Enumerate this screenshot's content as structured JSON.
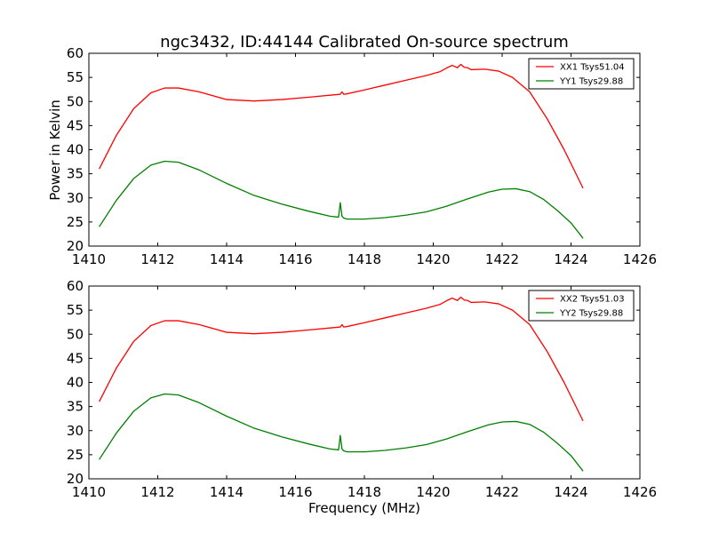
{
  "figure": {
    "title": "ngc3432, ID:44144 Calibrated On-source spectrum",
    "xlabel": "Frequency (MHz)",
    "ylabel": "Power in Kelvin"
  },
  "chart_data": [
    {
      "type": "line",
      "title": "ngc3432, ID:44144 Calibrated On-source spectrum",
      "xlabel": "",
      "ylabel": "Power in Kelvin",
      "xlim": [
        1410,
        1426
      ],
      "ylim": [
        20,
        60
      ],
      "xticks": [
        1410,
        1412,
        1414,
        1416,
        1418,
        1420,
        1422,
        1424,
        1426
      ],
      "yticks": [
        20,
        25,
        30,
        35,
        40,
        45,
        50,
        55,
        60
      ],
      "grid": false,
      "legend": "top-right",
      "series": [
        {
          "name": "XX1 Tsys51.04",
          "color": "#ff0000",
          "x": [
            1410.3,
            1410.8,
            1411.3,
            1411.8,
            1412.2,
            1412.6,
            1413.2,
            1414.0,
            1414.8,
            1415.6,
            1416.4,
            1417.0,
            1417.3,
            1417.35,
            1417.4,
            1417.5,
            1418.0,
            1418.6,
            1419.2,
            1419.8,
            1420.2,
            1420.4,
            1420.55,
            1420.7,
            1420.8,
            1420.9,
            1421.0,
            1421.1,
            1421.5,
            1421.9,
            1422.3,
            1422.8,
            1423.3,
            1423.8,
            1424.35
          ],
          "y": [
            36.0,
            43.0,
            48.5,
            51.8,
            52.8,
            52.8,
            52.0,
            50.4,
            50.1,
            50.4,
            50.9,
            51.3,
            51.5,
            52.0,
            51.5,
            51.6,
            52.4,
            53.4,
            54.4,
            55.4,
            56.2,
            57.0,
            57.5,
            57.0,
            57.7,
            57.1,
            57.0,
            56.6,
            56.7,
            56.3,
            55.0,
            52.0,
            46.5,
            40.0,
            32.0
          ]
        },
        {
          "name": "YY1 Tsys29.88",
          "color": "#008000",
          "x": [
            1410.3,
            1410.8,
            1411.3,
            1411.8,
            1412.2,
            1412.6,
            1413.2,
            1414.0,
            1414.8,
            1415.6,
            1416.4,
            1417.0,
            1417.25,
            1417.3,
            1417.35,
            1417.4,
            1417.5,
            1418.0,
            1418.6,
            1419.2,
            1419.8,
            1420.4,
            1421.0,
            1421.6,
            1422.0,
            1422.4,
            1422.8,
            1423.2,
            1423.6,
            1424.0,
            1424.35
          ],
          "y": [
            24.0,
            29.5,
            34.0,
            36.8,
            37.6,
            37.4,
            35.8,
            33.0,
            30.5,
            28.7,
            27.2,
            26.2,
            26.0,
            29.0,
            26.2,
            25.8,
            25.6,
            25.6,
            25.9,
            26.4,
            27.1,
            28.3,
            29.8,
            31.2,
            31.8,
            31.9,
            31.3,
            29.7,
            27.4,
            24.8,
            21.6
          ]
        }
      ]
    },
    {
      "type": "line",
      "title": "",
      "xlabel": "Frequency (MHz)",
      "ylabel": "",
      "xlim": [
        1410,
        1426
      ],
      "ylim": [
        20,
        60
      ],
      "xticks": [
        1410,
        1412,
        1414,
        1416,
        1418,
        1420,
        1422,
        1424,
        1426
      ],
      "yticks": [
        20,
        25,
        30,
        35,
        40,
        45,
        50,
        55,
        60
      ],
      "grid": false,
      "legend": "top-right",
      "series": [
        {
          "name": "XX2 Tsys51.03",
          "color": "#ff0000",
          "x": [
            1410.3,
            1410.8,
            1411.3,
            1411.8,
            1412.2,
            1412.6,
            1413.2,
            1414.0,
            1414.8,
            1415.6,
            1416.4,
            1417.0,
            1417.3,
            1417.35,
            1417.4,
            1417.5,
            1418.0,
            1418.6,
            1419.2,
            1419.8,
            1420.2,
            1420.4,
            1420.55,
            1420.7,
            1420.8,
            1420.9,
            1421.0,
            1421.1,
            1421.5,
            1421.9,
            1422.3,
            1422.8,
            1423.3,
            1423.8,
            1424.35
          ],
          "y": [
            36.0,
            43.0,
            48.5,
            51.8,
            52.8,
            52.8,
            52.0,
            50.4,
            50.1,
            50.4,
            50.9,
            51.3,
            51.5,
            52.0,
            51.5,
            51.6,
            52.4,
            53.4,
            54.4,
            55.4,
            56.2,
            57.0,
            57.5,
            57.0,
            57.7,
            57.1,
            57.0,
            56.6,
            56.7,
            56.3,
            55.0,
            52.0,
            46.5,
            40.0,
            32.0
          ]
        },
        {
          "name": "YY2 Tsys29.88",
          "color": "#008000",
          "x": [
            1410.3,
            1410.8,
            1411.3,
            1411.8,
            1412.2,
            1412.6,
            1413.2,
            1414.0,
            1414.8,
            1415.6,
            1416.4,
            1417.0,
            1417.25,
            1417.3,
            1417.35,
            1417.4,
            1417.5,
            1418.0,
            1418.6,
            1419.2,
            1419.8,
            1420.4,
            1421.0,
            1421.6,
            1422.0,
            1422.4,
            1422.8,
            1423.2,
            1423.6,
            1424.0,
            1424.35
          ],
          "y": [
            24.0,
            29.5,
            34.0,
            36.8,
            37.6,
            37.4,
            35.8,
            33.0,
            30.5,
            28.7,
            27.2,
            26.2,
            26.0,
            29.0,
            26.2,
            25.8,
            25.6,
            25.6,
            25.9,
            26.4,
            27.1,
            28.3,
            29.8,
            31.2,
            31.8,
            31.9,
            31.3,
            29.7,
            27.4,
            24.8,
            21.6
          ]
        }
      ]
    }
  ]
}
